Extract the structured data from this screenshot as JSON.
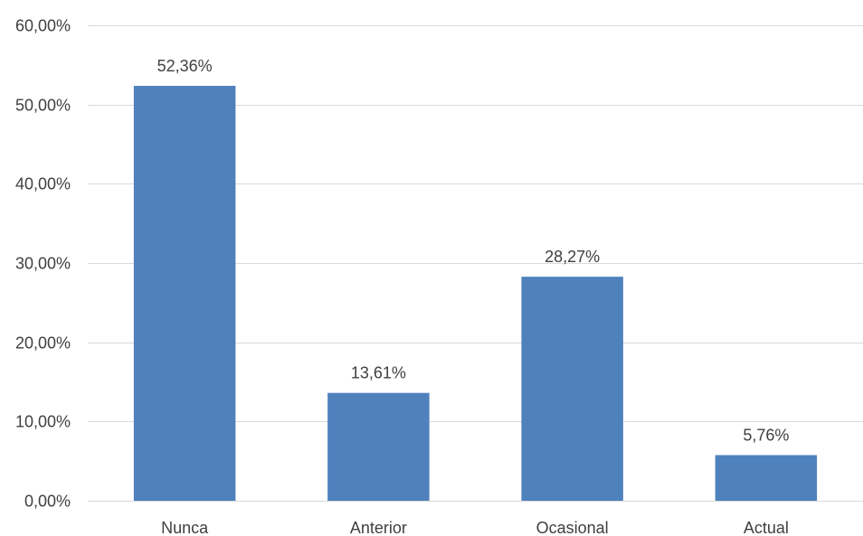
{
  "colors": {
    "bar": "#4f81bd",
    "grid": "#d9d9d9",
    "text": "#404040"
  },
  "chart_data": {
    "type": "bar",
    "title": "",
    "xlabel": "",
    "ylabel": "",
    "categories": [
      "Nunca",
      "Anterior",
      "Ocasional",
      "Actual"
    ],
    "values": [
      52.36,
      13.61,
      28.27,
      5.76
    ],
    "data_labels": [
      "52,36%",
      "13,61%",
      "28,27%",
      "5,76%"
    ],
    "ylim": [
      0,
      60
    ],
    "y_ticks": [
      0,
      10,
      20,
      30,
      40,
      50,
      60
    ],
    "y_tick_labels": [
      "0,00%",
      "10,00%",
      "20,00%",
      "30,00%",
      "40,00%",
      "50,00%",
      "60,00%"
    ],
    "grid": true,
    "legend": "none"
  }
}
